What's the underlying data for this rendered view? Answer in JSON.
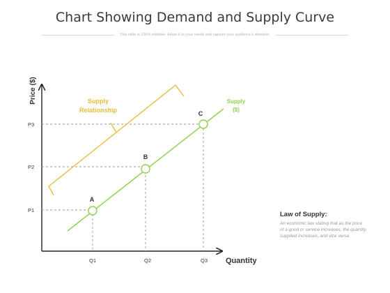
{
  "header": {
    "title": "Chart Showing Demand and Supply Curve",
    "subtitle": "This slide is 100% editable. Adapt it to your needs and capture your audience's attention."
  },
  "axes": {
    "y_label": "Price ($)",
    "x_label": "Quantity",
    "y_ticks": [
      "P1",
      "P2",
      "P3"
    ],
    "x_ticks": [
      "Q1",
      "Q2",
      "Q3"
    ]
  },
  "points": [
    {
      "label": "A"
    },
    {
      "label": "B"
    },
    {
      "label": "C"
    }
  ],
  "supply_curve": {
    "label_line1": "Supply",
    "label_line2": "($)",
    "color": "#8fd14f"
  },
  "relationship": {
    "label_line1": "Supply",
    "label_line2": "Relationship",
    "color": "#e8be3a"
  },
  "law": {
    "title": "Law of Supply:",
    "text": "An economic law stating that as the price of a good or service increases, the quantity supplied increases, and vice versa"
  },
  "colors": {
    "axis": "#222222",
    "guide": "#9a9a9a",
    "text": "#333333"
  }
}
